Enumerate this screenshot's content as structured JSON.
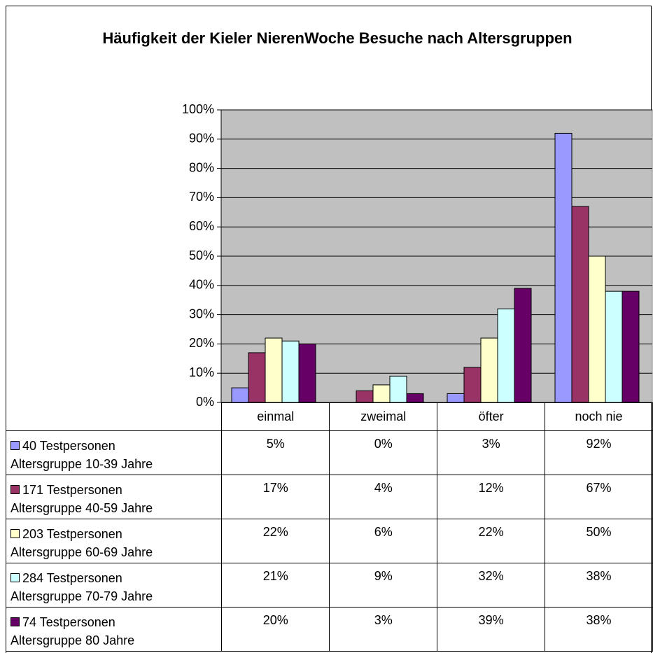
{
  "chart_data": {
    "type": "bar",
    "title": "Häufigkeit der Kieler NierenWoche Besuche nach Altersgruppen",
    "categories": [
      "einmal",
      "zweimal",
      "öfter",
      "noch nie"
    ],
    "series": [
      {
        "name": "40 Testpersonen\nAltersgruppe 10-39 Jahre",
        "color": "#9999ff",
        "values": [
          5,
          0,
          3,
          92
        ],
        "value_labels": [
          "5%",
          "0%",
          "3%",
          "92%"
        ]
      },
      {
        "name": "171 Testpersonen\nAltersgruppe 40-59 Jahre",
        "color": "#993366",
        "values": [
          17,
          4,
          12,
          67
        ],
        "value_labels": [
          "17%",
          "4%",
          "12%",
          "67%"
        ]
      },
      {
        "name": "203 Testpersonen\nAltersgruppe 60-69 Jahre",
        "color": "#ffffcc",
        "values": [
          22,
          6,
          22,
          50
        ],
        "value_labels": [
          "22%",
          "6%",
          "22%",
          "50%"
        ]
      },
      {
        "name": "284 Testpersonen\nAltersgruppe 70-79 Jahre",
        "color": "#ccffff",
        "values": [
          21,
          9,
          32,
          38
        ],
        "value_labels": [
          "21%",
          "9%",
          "32%",
          "38%"
        ]
      },
      {
        "name": "74 Testpersonen\nAltersgruppe 80 Jahre",
        "color": "#660066",
        "values": [
          20,
          3,
          39,
          38
        ],
        "value_labels": [
          "20%",
          "3%",
          "39%",
          "38%"
        ]
      }
    ],
    "ylim": [
      0,
      100
    ],
    "yticks": [
      {
        "value": 0,
        "label": "0%"
      },
      {
        "value": 10,
        "label": "10%"
      },
      {
        "value": 20,
        "label": "20%"
      },
      {
        "value": 30,
        "label": "30%"
      },
      {
        "value": 40,
        "label": "40%"
      },
      {
        "value": 50,
        "label": "50%"
      },
      {
        "value": 60,
        "label": "60%"
      },
      {
        "value": 70,
        "label": "70%"
      },
      {
        "value": 80,
        "label": "80%"
      },
      {
        "value": 90,
        "label": "90%"
      },
      {
        "value": 100,
        "label": "100%"
      }
    ],
    "grid": true,
    "plot_background": "#c0c0c0"
  }
}
